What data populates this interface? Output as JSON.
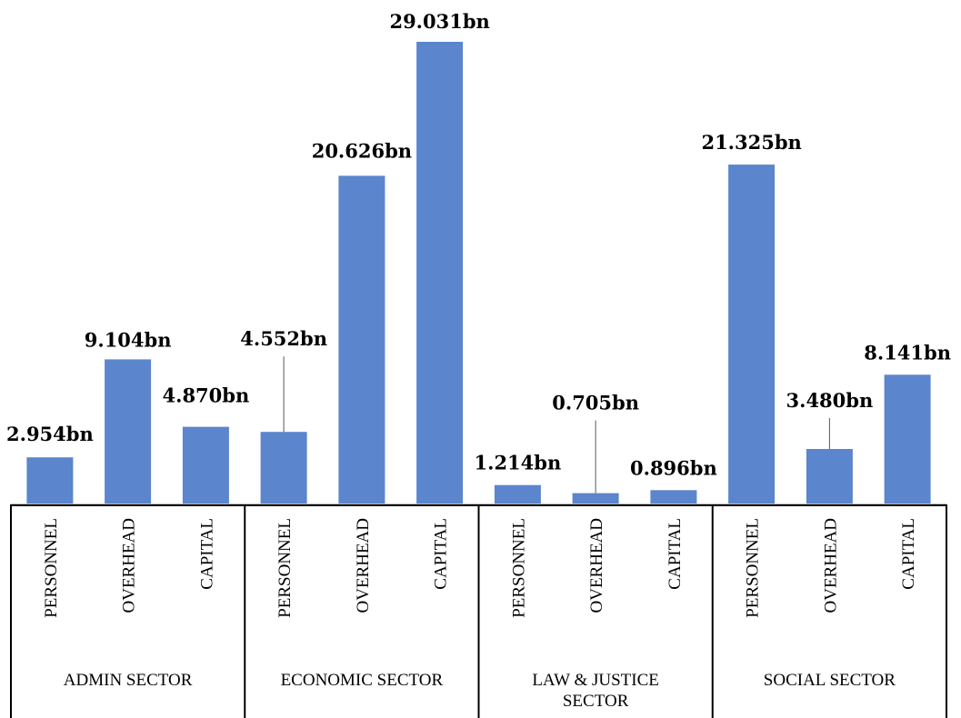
{
  "chart_data": {
    "type": "bar",
    "unit": "bn",
    "categories": [
      "PERSONNEL",
      "OVERHEAD",
      "CAPITAL",
      "PERSONNEL",
      "OVERHEAD",
      "CAPITAL",
      "PERSONNEL",
      "OVERHEAD",
      "CAPITAL",
      "PERSONNEL",
      "OVERHEAD",
      "CAPITAL"
    ],
    "groups": [
      {
        "name": "ADMIN SECTOR",
        "lines": [
          "ADMIN SECTOR"
        ]
      },
      {
        "name": "ECONOMIC SECTOR",
        "lines": [
          "ECONOMIC SECTOR"
        ]
      },
      {
        "name": "LAW & JUSTICE SECTOR",
        "lines": [
          "LAW & JUSTICE",
          "SECTOR"
        ]
      },
      {
        "name": "SOCIAL SECTOR",
        "lines": [
          "SOCIAL SECTOR"
        ]
      }
    ],
    "values": [
      2.954,
      9.104,
      4.87,
      4.552,
      20.626,
      29.031,
      1.214,
      0.705,
      0.896,
      21.325,
      3.48,
      8.141
    ],
    "data_labels": [
      "2.954bn",
      "9.104bn",
      "4.870bn",
      "4.552bn",
      "20.626bn",
      "29.031bn",
      "1.214bn",
      "0.705bn",
      "0.896bn",
      "21.325bn",
      "3.480bn",
      "8.141bn"
    ],
    "ylim": [
      0,
      29.031
    ],
    "grid": false,
    "legend": "none",
    "bar_color": "#5b85cc"
  }
}
